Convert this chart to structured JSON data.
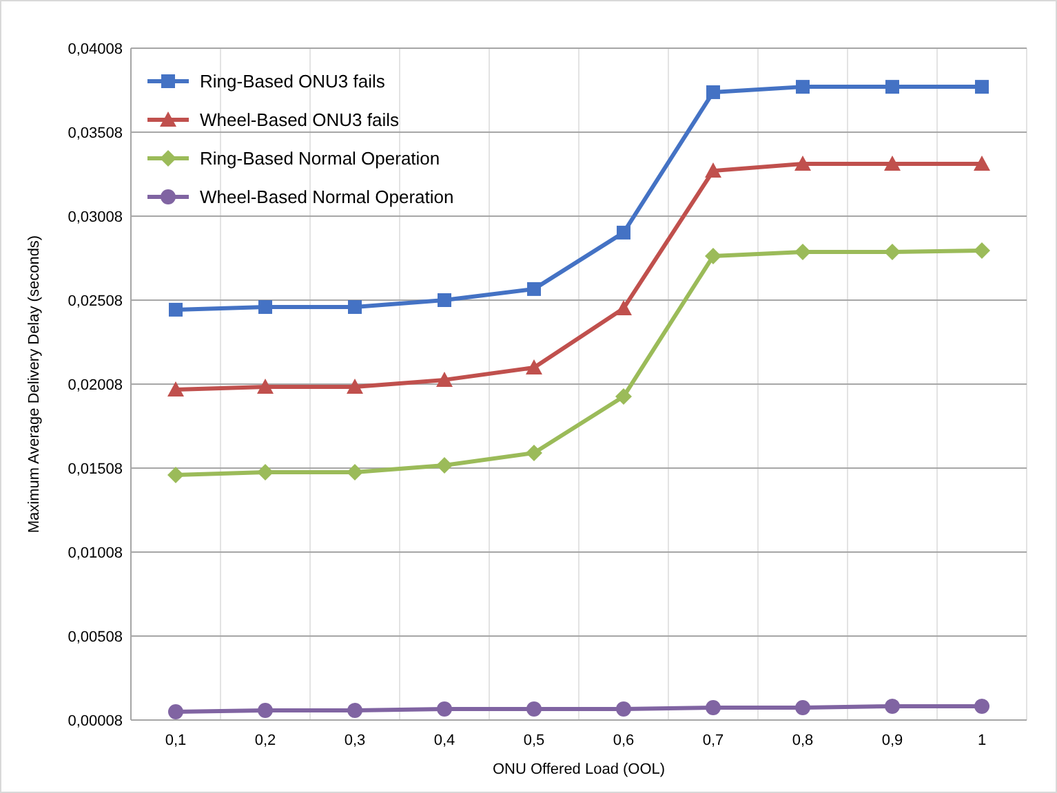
{
  "chart_data": {
    "type": "line",
    "xlabel": "ONU Offered Load (OOL)",
    "ylabel": "Maximum Average Delivery Delay (seconds)",
    "categories": [
      "0,1",
      "0,2",
      "0,3",
      "0,4",
      "0,5",
      "0,6",
      "0,7",
      "0,8",
      "0,9",
      "1"
    ],
    "series": [
      {
        "name": "Ring-Based ONU3 fails",
        "color": "#4472c4",
        "marker": "square",
        "values": [
          0.02451,
          0.02467,
          0.02467,
          0.02508,
          0.02574,
          0.0291,
          0.03746,
          0.03778,
          0.03778,
          0.03778
        ]
      },
      {
        "name": "Wheel-Based ONU3 fails",
        "color": "#c0504d",
        "marker": "triangle",
        "values": [
          0.01975,
          0.01992,
          0.01992,
          0.02033,
          0.02106,
          0.02459,
          0.03278,
          0.03319,
          0.03319,
          0.03319
        ]
      },
      {
        "name": "Ring-Based Normal Operation",
        "color": "#9bbb59",
        "marker": "diamond",
        "values": [
          0.01467,
          0.01483,
          0.01483,
          0.01524,
          0.01598,
          0.01934,
          0.0277,
          0.02795,
          0.02795,
          0.02803
        ]
      },
      {
        "name": "Wheel-Based Normal Operation",
        "color": "#8064a2",
        "marker": "circle",
        "values": [
          0.00057,
          0.00065,
          0.00065,
          0.00074,
          0.00074,
          0.00074,
          0.00082,
          0.00082,
          0.0009,
          0.0009
        ]
      }
    ],
    "ylim": [
      8e-05,
      0.04008
    ],
    "yticks": [
      {
        "value": 8e-05,
        "label": "0,00008"
      },
      {
        "value": 0.00508,
        "label": "0,00508"
      },
      {
        "value": 0.01008,
        "label": "0,01008"
      },
      {
        "value": 0.01508,
        "label": "0,01508"
      },
      {
        "value": 0.02008,
        "label": "0,02008"
      },
      {
        "value": 0.02508,
        "label": "0,02508"
      },
      {
        "value": 0.03008,
        "label": "0,03008"
      },
      {
        "value": 0.03508,
        "label": "0,03508"
      },
      {
        "value": 0.04008,
        "label": "0,04008"
      }
    ],
    "grid": true,
    "legend": "top left",
    "line_style": "solid"
  }
}
